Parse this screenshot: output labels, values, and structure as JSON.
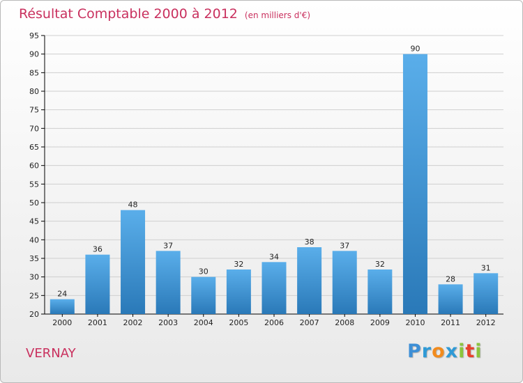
{
  "chart_data": {
    "type": "bar",
    "title": "Résultat Comptable 2000 à 2012",
    "subtitle": "(en milliers d'€)",
    "categories": [
      "2000",
      "2001",
      "2002",
      "2003",
      "2004",
      "2005",
      "2006",
      "2007",
      "2008",
      "2009",
      "2010",
      "2011",
      "2012"
    ],
    "values": [
      24,
      36,
      48,
      37,
      30,
      32,
      34,
      38,
      37,
      32,
      90,
      28,
      31
    ],
    "ylim": [
      20,
      95
    ],
    "yticks": [
      20,
      25,
      30,
      35,
      40,
      45,
      50,
      55,
      60,
      65,
      70,
      75,
      80,
      85,
      90,
      95
    ],
    "xlabel": "",
    "ylabel": "",
    "grid": true,
    "bar_color": "#3c95d6"
  },
  "place_name": "VERNAY",
  "logo": {
    "text": "Proxiti",
    "letters": [
      "P",
      "r",
      "o",
      "x",
      "i",
      "t",
      "i"
    ],
    "colors": [
      "#3d8fd6",
      "#2f9ad6",
      "#f28b1d",
      "#2f9ad6",
      "#8bc43d",
      "#e8412c",
      "#8bc43d"
    ]
  },
  "colors": {
    "title": "#c9305e",
    "axis": "#000000"
  }
}
